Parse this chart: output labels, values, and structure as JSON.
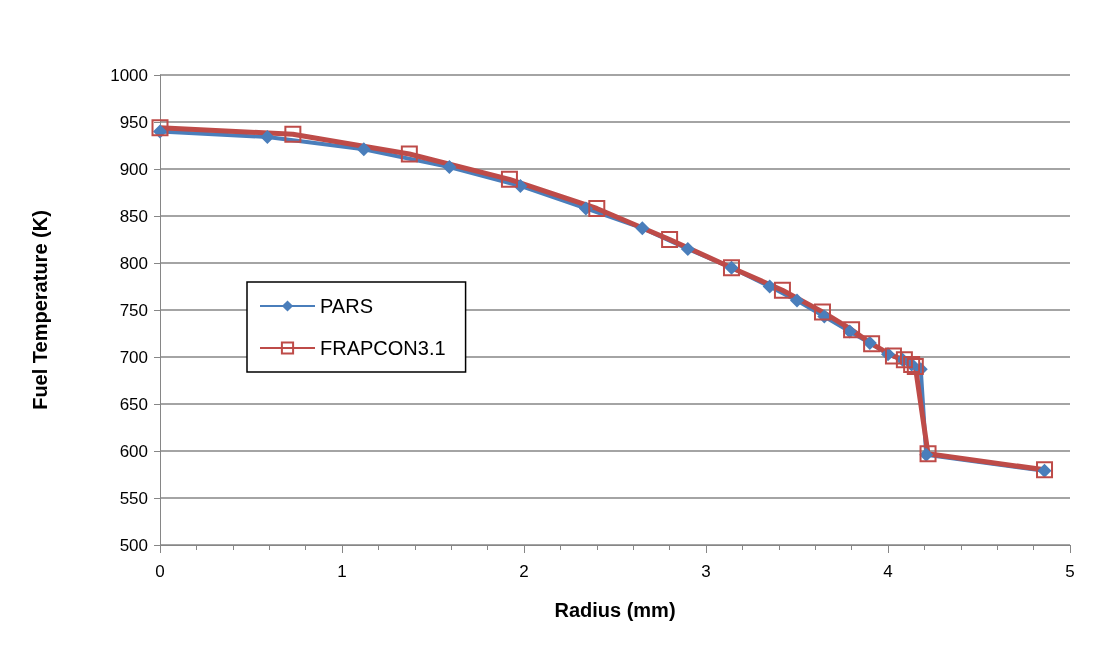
{
  "chart_data": {
    "type": "line",
    "xlabel": "Radius (mm)",
    "ylabel": "Fuel Temperature (K)",
    "xlim": [
      0,
      5
    ],
    "xticks": [
      0,
      1,
      2,
      3,
      4,
      5
    ],
    "ylim": [
      500,
      1000
    ],
    "yticks": [
      500,
      550,
      600,
      650,
      700,
      750,
      800,
      850,
      900,
      950,
      1000
    ],
    "grid": "y",
    "legend": "left",
    "series": [
      {
        "name": "PARS",
        "color": "#4a7ebb",
        "marker": "diamond",
        "x": [
          0,
          0.59,
          1.12,
          1.59,
          1.98,
          2.34,
          2.65,
          2.9,
          3.14,
          3.35,
          3.5,
          3.65,
          3.79,
          3.9,
          4.0,
          4.08,
          4.13,
          4.18,
          4.21,
          4.86
        ],
        "values": [
          940,
          934,
          921,
          902,
          882,
          858,
          837,
          815,
          795,
          775,
          760,
          743,
          727,
          715,
          703,
          697,
          692,
          687,
          596,
          579
        ]
      },
      {
        "name": "FRAPCON3.1",
        "color": "#be4b48",
        "marker": "square",
        "x": [
          0,
          0.73,
          1.37,
          1.92,
          2.4,
          2.8,
          3.14,
          3.42,
          3.64,
          3.8,
          3.91,
          4.03,
          4.09,
          4.13,
          4.15,
          4.22,
          4.86
        ],
        "values": [
          944,
          937,
          916,
          889,
          858,
          825,
          795,
          771,
          748,
          729,
          714,
          701,
          697,
          692,
          690,
          597,
          580
        ]
      }
    ]
  }
}
